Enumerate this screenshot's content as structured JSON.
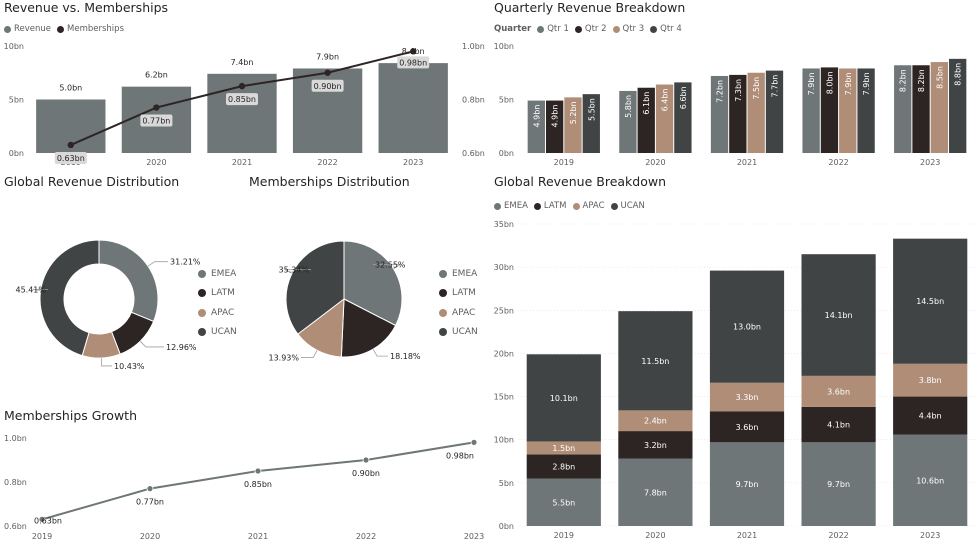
{
  "colors": {
    "gray": "#6f7677",
    "dark": "#2d2424",
    "tan": "#b08d77",
    "charcoal": "#404445",
    "line": "#2d2424",
    "growth": "#6f7677"
  },
  "p1": {
    "title": "Revenue vs. Memberships"
  },
  "p2": {
    "title": "Quarterly Revenue Breakdown"
  },
  "p3": {
    "title": "Global Revenue Distribution"
  },
  "p4": {
    "title": "Memberships Distribution"
  },
  "p5": {
    "title": "Global Revenue Breakdown"
  },
  "p6": {
    "title": "Memberships Growth"
  },
  "chart_data": [
    {
      "id": "rev_vs_mem",
      "type": "bar",
      "title": "Revenue vs. Memberships",
      "categories": [
        "2019",
        "2020",
        "2021",
        "2022",
        "2023"
      ],
      "series": [
        {
          "name": "Revenue",
          "type": "bar",
          "axis": "left",
          "values": [
            5.0,
            6.2,
            7.4,
            7.9,
            8.4
          ],
          "labels": [
            "5.0bn",
            "6.2bn",
            "7.4bn",
            "7.9bn",
            "8.4bn"
          ],
          "color": "#6f7677"
        },
        {
          "name": "Memberships",
          "type": "line",
          "axis": "right",
          "values": [
            0.63,
            0.77,
            0.85,
            0.9,
            0.98
          ],
          "labels": [
            "0.63bn",
            "0.77bn",
            "0.85bn",
            "0.90bn",
            "0.98bn"
          ],
          "color": "#2d2424"
        }
      ],
      "yleft": {
        "ticks": [
          "0bn",
          "5bn",
          "10bn"
        ],
        "range": [
          0,
          10
        ]
      },
      "yright": {
        "ticks": [
          "0.6bn",
          "0.8bn",
          "1.0bn"
        ],
        "range": [
          0.6,
          1.0
        ]
      },
      "legend": "top-left"
    },
    {
      "id": "quarterly",
      "type": "bar",
      "title": "Quarterly Revenue Breakdown",
      "legend_title": "Quarter",
      "categories": [
        "2019",
        "2020",
        "2021",
        "2022",
        "2023"
      ],
      "series": [
        {
          "name": "Qtr 1",
          "color": "#6f7677",
          "values": [
            4.9,
            5.8,
            7.2,
            7.9,
            8.2
          ],
          "labels": [
            "4.9bn",
            "5.8bn",
            "7.2bn",
            "7.9bn",
            "8.2bn"
          ]
        },
        {
          "name": "Qtr 2",
          "color": "#2d2424",
          "values": [
            4.9,
            6.1,
            7.3,
            8.0,
            8.2
          ],
          "labels": [
            "4.9bn",
            "6.1bn",
            "7.3bn",
            "8.0bn",
            "8.2bn"
          ]
        },
        {
          "name": "Qtr 3",
          "color": "#b08d77",
          "values": [
            5.2,
            6.4,
            7.5,
            7.9,
            8.5
          ],
          "labels": [
            "5.2bn",
            "6.4bn",
            "7.5bn",
            "7.9bn",
            "8.5bn"
          ]
        },
        {
          "name": "Qtr 4",
          "color": "#404445",
          "values": [
            5.5,
            6.6,
            7.7,
            7.9,
            8.8
          ],
          "labels": [
            "5.5bn",
            "6.6bn",
            "7.7bn",
            "7.9bn",
            "8.8bn"
          ]
        }
      ],
      "yticks": [
        "0bn",
        "5bn",
        "10bn"
      ],
      "ylim": [
        0,
        10
      ],
      "legend": "top-left"
    },
    {
      "id": "global_dist",
      "type": "pie",
      "subtype": "donut",
      "title": "Global Revenue Distribution",
      "slices": [
        {
          "name": "EMEA",
          "value": 31.21,
          "label": "31.21%",
          "color": "#6f7677"
        },
        {
          "name": "LATM",
          "value": 12.96,
          "label": "12.96%",
          "color": "#2d2424"
        },
        {
          "name": "APAC",
          "value": 10.43,
          "label": "10.43%",
          "color": "#b08d77"
        },
        {
          "name": "UCAN",
          "value": 45.41,
          "label": "45.41%",
          "color": "#404445"
        }
      ],
      "legend": "right"
    },
    {
      "id": "mem_dist",
      "type": "pie",
      "title": "Memberships Distribution",
      "slices": [
        {
          "name": "EMEA",
          "value": 32.55,
          "label": "32.55%",
          "color": "#6f7677"
        },
        {
          "name": "LATM",
          "value": 18.18,
          "label": "18.18%",
          "color": "#2d2424"
        },
        {
          "name": "APAC",
          "value": 13.93,
          "label": "13.93%",
          "color": "#b08d77"
        },
        {
          "name": "UCAN",
          "value": 35.34,
          "label": "35.34%",
          "color": "#404445"
        }
      ],
      "legend": "right"
    },
    {
      "id": "global_breakdown",
      "type": "bar",
      "stacked": true,
      "title": "Global Revenue Breakdown",
      "categories": [
        "2019",
        "2020",
        "2021",
        "2022",
        "2023"
      ],
      "series": [
        {
          "name": "EMEA",
          "color": "#6f7677",
          "values": [
            5.5,
            7.8,
            9.7,
            9.7,
            10.6
          ],
          "labels": [
            "5.5bn",
            "7.8bn",
            "9.7bn",
            "9.7bn",
            "10.6bn"
          ],
          "label_color": "#ffffff"
        },
        {
          "name": "LATM",
          "color": "#2d2424",
          "values": [
            2.8,
            3.2,
            3.6,
            4.1,
            4.4
          ],
          "labels": [
            "2.8bn",
            "3.2bn",
            "3.6bn",
            "4.1bn",
            "4.4bn"
          ],
          "label_color": "#ffffff"
        },
        {
          "name": "APAC",
          "color": "#b08d77",
          "values": [
            1.5,
            2.4,
            3.3,
            3.6,
            3.8
          ],
          "labels": [
            "1.5bn",
            "2.4bn",
            "3.3bn",
            "3.6bn",
            "3.8bn"
          ],
          "label_color": "#ffffff"
        },
        {
          "name": "UCAN",
          "color": "#404445",
          "values": [
            10.1,
            11.5,
            13.0,
            14.1,
            14.5
          ],
          "labels": [
            "10.1bn",
            "11.5bn",
            "13.0bn",
            "14.1bn",
            "14.5bn"
          ],
          "label_color": "#ffffff"
        }
      ],
      "yticks": [
        "0bn",
        "5bn",
        "10bn",
        "15bn",
        "20bn",
        "25bn",
        "30bn",
        "35bn"
      ],
      "ylim": [
        0,
        35
      ],
      "legend": "top-left"
    },
    {
      "id": "mem_growth",
      "type": "line",
      "title": "Memberships Growth",
      "categories": [
        "2019",
        "2020",
        "2021",
        "2022",
        "2023"
      ],
      "values": [
        0.63,
        0.77,
        0.85,
        0.9,
        0.98
      ],
      "labels": [
        "0.63bn",
        "0.77bn",
        "0.85bn",
        "0.90bn",
        "0.98bn"
      ],
      "yticks": [
        "0.6bn",
        "0.8bn",
        "1.0bn"
      ],
      "ylim": [
        0.6,
        1.0
      ]
    }
  ]
}
